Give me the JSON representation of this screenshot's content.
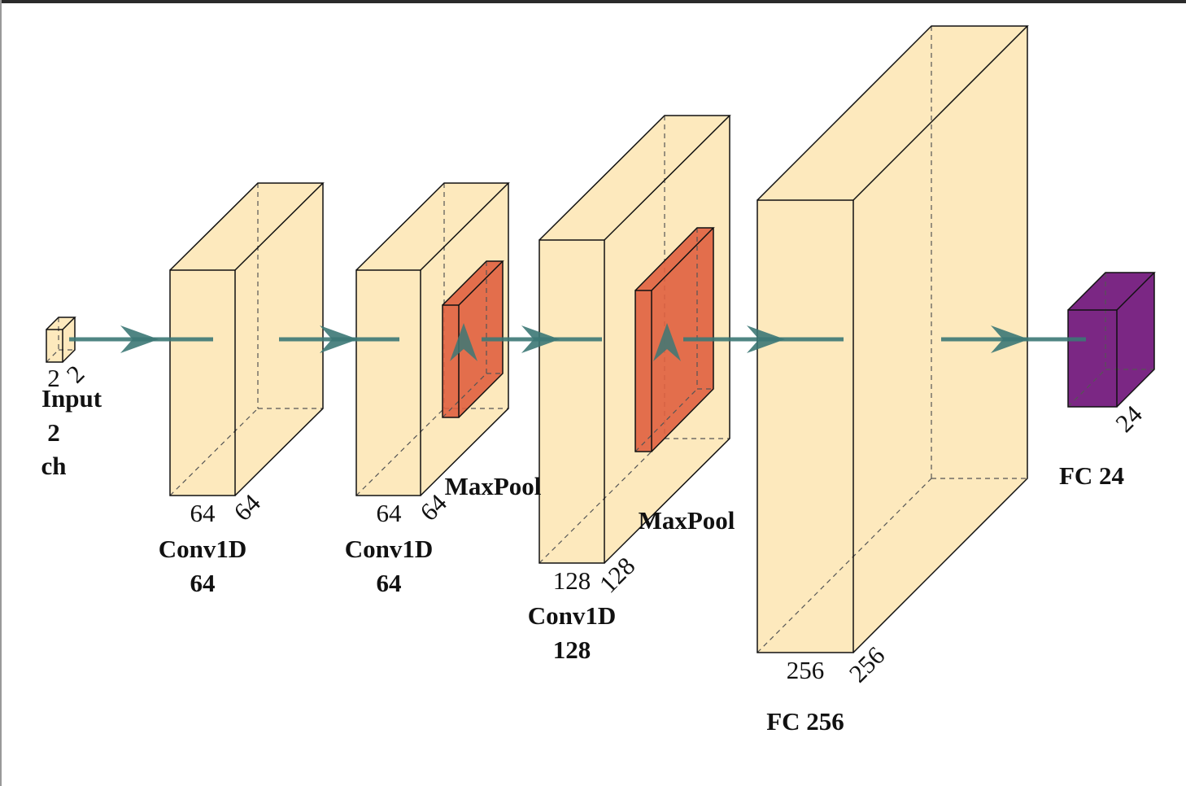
{
  "nodes": [
    {
      "label": [
        "Input",
        "2",
        "ch"
      ],
      "dims": [
        "2",
        "2"
      ]
    },
    {
      "label": [
        "Conv1D",
        "64"
      ],
      "dims": [
        "64",
        "64"
      ]
    },
    {
      "label": [
        "Conv1D",
        "64"
      ],
      "dims": [
        "64",
        "64"
      ]
    },
    {
      "label": [
        "MaxPool"
      ]
    },
    {
      "label": [
        "Conv1D",
        "128"
      ],
      "dims": [
        "128",
        "128"
      ]
    },
    {
      "label": [
        "MaxPool"
      ]
    },
    {
      "label": [
        "FC 256"
      ],
      "dims": [
        "256",
        "256"
      ]
    },
    {
      "label": [
        "FC 24"
      ],
      "dims": [
        "24"
      ]
    }
  ]
}
